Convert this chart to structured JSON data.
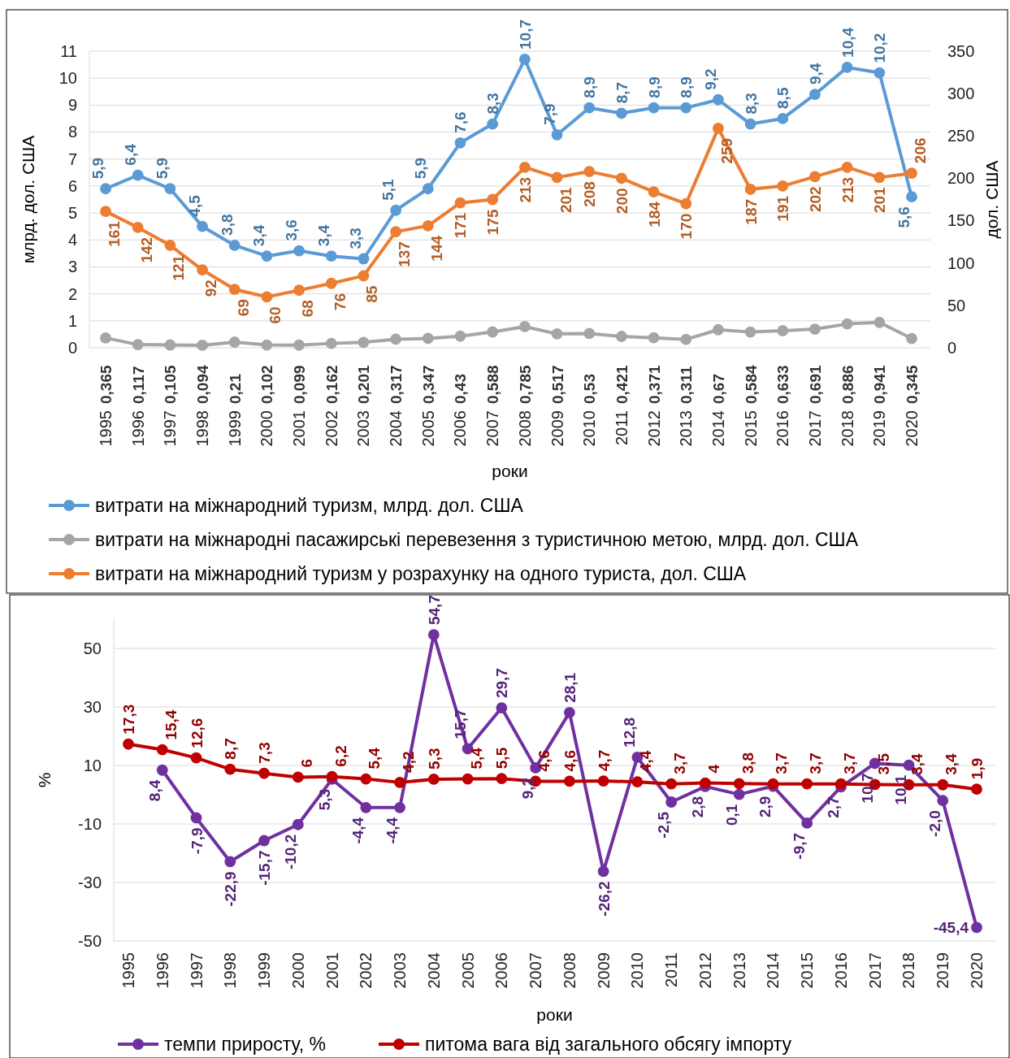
{
  "chart_data": [
    {
      "type": "line",
      "xlabel": "роки",
      "ylabel": "млрд. дол. США",
      "y2label": "дол. США",
      "categories": [
        "1995",
        "1996",
        "1997",
        "1998",
        "1999",
        "2000",
        "2001",
        "2002",
        "2003",
        "2004",
        "2005",
        "2006",
        "2007",
        "2008",
        "2009",
        "2010",
        "2011",
        "2012",
        "2013",
        "2014",
        "2015",
        "2016",
        "2017",
        "2018",
        "2019",
        "2020"
      ],
      "ylim": [
        0,
        11
      ],
      "yticks": [
        0,
        1,
        2,
        3,
        4,
        5,
        6,
        7,
        8,
        9,
        10,
        11
      ],
      "y2lim": [
        0,
        350
      ],
      "y2ticks": [
        0,
        50,
        100,
        150,
        200,
        250,
        300,
        350
      ],
      "grid": "y",
      "legend": "bottom",
      "marker": "circle",
      "series": [
        {
          "name": "витрати на міжнародний туризм, млрд. дол. США",
          "color": "#5b9bd5",
          "values": [
            5.9,
            6.4,
            5.9,
            4.5,
            3.8,
            3.4,
            3.6,
            3.4,
            3.3,
            5.1,
            5.9,
            7.6,
            8.3,
            10.7,
            7.9,
            8.9,
            8.7,
            8.9,
            8.9,
            9.2,
            8.3,
            8.5,
            9.4,
            10.4,
            10.2,
            5.6
          ],
          "value_labels": [
            "5,9",
            "6,4",
            "5,9",
            "4,5",
            "3,8",
            "3,4",
            "3,6",
            "3,4",
            "3,3",
            "5,1",
            "5,9",
            "7,6",
            "8,3",
            "10,7",
            "7,9",
            "8,9",
            "8,7",
            "8,9",
            "8,9",
            "9,2",
            "8,3",
            "8,5",
            "9,4",
            "10,4",
            "10,2",
            "5,6"
          ]
        },
        {
          "name": "витрати на міжнародні пасажирські перевезення з туристичною метою, млрд. дол. США",
          "color": "#a5a5a5",
          "values": [
            0.365,
            0.117,
            0.105,
            0.094,
            0.21,
            0.102,
            0.099,
            0.162,
            0.201,
            0.317,
            0.347,
            0.43,
            0.588,
            0.785,
            0.517,
            0.53,
            0.421,
            0.371,
            0.311,
            0.67,
            0.584,
            0.633,
            0.691,
            0.886,
            0.941,
            0.345
          ],
          "value_labels": [
            "0,365",
            "0,117",
            "0,105",
            "0,094",
            "0,21",
            "0,102",
            "0,099",
            "0,162",
            "0,201",
            "0,317",
            "0,347",
            "0,43",
            "0,588",
            "0,785",
            "0,517",
            "0,53",
            "0,421",
            "0,371",
            "0,311",
            "0,67",
            "0,584",
            "0,633",
            "0,691",
            "0,886",
            "0,941",
            "0,345"
          ]
        },
        {
          "name": "витрати на міжнародний туризм у розрахунку на одного туриста, дол. США",
          "color": "#ed7d31",
          "axis": "y2",
          "values": [
            161,
            142,
            121,
            92,
            69,
            60,
            68,
            76,
            85,
            137,
            144,
            171,
            175,
            213,
            201,
            208,
            200,
            184,
            170,
            259,
            187,
            191,
            202,
            213,
            201,
            206
          ],
          "value_labels": [
            "161",
            "142",
            "121",
            "92",
            "69",
            "60",
            "68",
            "76",
            "85",
            "137",
            "144",
            "171",
            "175",
            "213",
            "201",
            "208",
            "200",
            "184",
            "170",
            "259",
            "187",
            "191",
            "202",
            "213",
            "201",
            "206"
          ]
        }
      ]
    },
    {
      "type": "line",
      "xlabel": "роки",
      "ylabel": "%",
      "categories": [
        "1995",
        "1996",
        "1997",
        "1998",
        "1999",
        "2000",
        "2001",
        "2002",
        "2003",
        "2004",
        "2005",
        "2006",
        "2007",
        "2008",
        "2009",
        "2010",
        "2011",
        "2012",
        "2013",
        "2014",
        "2015",
        "2016",
        "2017",
        "2018",
        "2019",
        "2020"
      ],
      "ylim": [
        -50,
        60
      ],
      "yticks": [
        -50,
        -30,
        -10,
        10,
        30,
        50
      ],
      "grid": "y",
      "legend": "bottom",
      "marker": "circle",
      "series": [
        {
          "name": "темпи приросту, %",
          "color": "#7030a0",
          "values": [
            null,
            8.4,
            -7.9,
            -22.9,
            -15.7,
            -10.2,
            5.3,
            -4.4,
            -4.4,
            54.7,
            15.7,
            29.7,
            9.2,
            28.1,
            -26.2,
            12.8,
            -2.5,
            2.8,
            0.1,
            2.9,
            -9.7,
            2.7,
            10.7,
            10.1,
            -2.0,
            -45.4
          ],
          "value_labels": [
            null,
            "8,4",
            "-7,9",
            "-22,9",
            "-15,7",
            "-10,2",
            "5,3",
            "-4,4",
            "-4,4",
            "54,7",
            "15,7",
            "29,7",
            "9,2",
            "28,1",
            "-26,2",
            "12,8",
            "-2,5",
            "2,8",
            "0,1",
            "2,9",
            "-9,7",
            "2,7",
            "10,7",
            "10,1",
            "-2,0",
            "-45,4"
          ]
        },
        {
          "name": "питома вага від загального обсягу імпорту",
          "color": "#c00000",
          "values": [
            17.3,
            15.4,
            12.6,
            8.7,
            7.3,
            6,
            6.2,
            5.4,
            4.2,
            5.3,
            5.4,
            5.5,
            4.6,
            4.6,
            4.7,
            4.4,
            3.7,
            4,
            3.8,
            3.7,
            3.7,
            3.7,
            3.5,
            3.4,
            3.4,
            1.9
          ],
          "value_labels": [
            "17,3",
            "15,4",
            "12,6",
            "8,7",
            "7,3",
            "6",
            "6,2",
            "5,4",
            "4,2",
            "5,3",
            "5,4",
            "5,5",
            "4,6",
            "4,6",
            "4,7",
            "4,4",
            "3,7",
            "4",
            "3,8",
            "3,7",
            "3,7",
            "3,7",
            "3,5",
            "3,4",
            "3,4",
            "1,9"
          ]
        }
      ]
    }
  ]
}
